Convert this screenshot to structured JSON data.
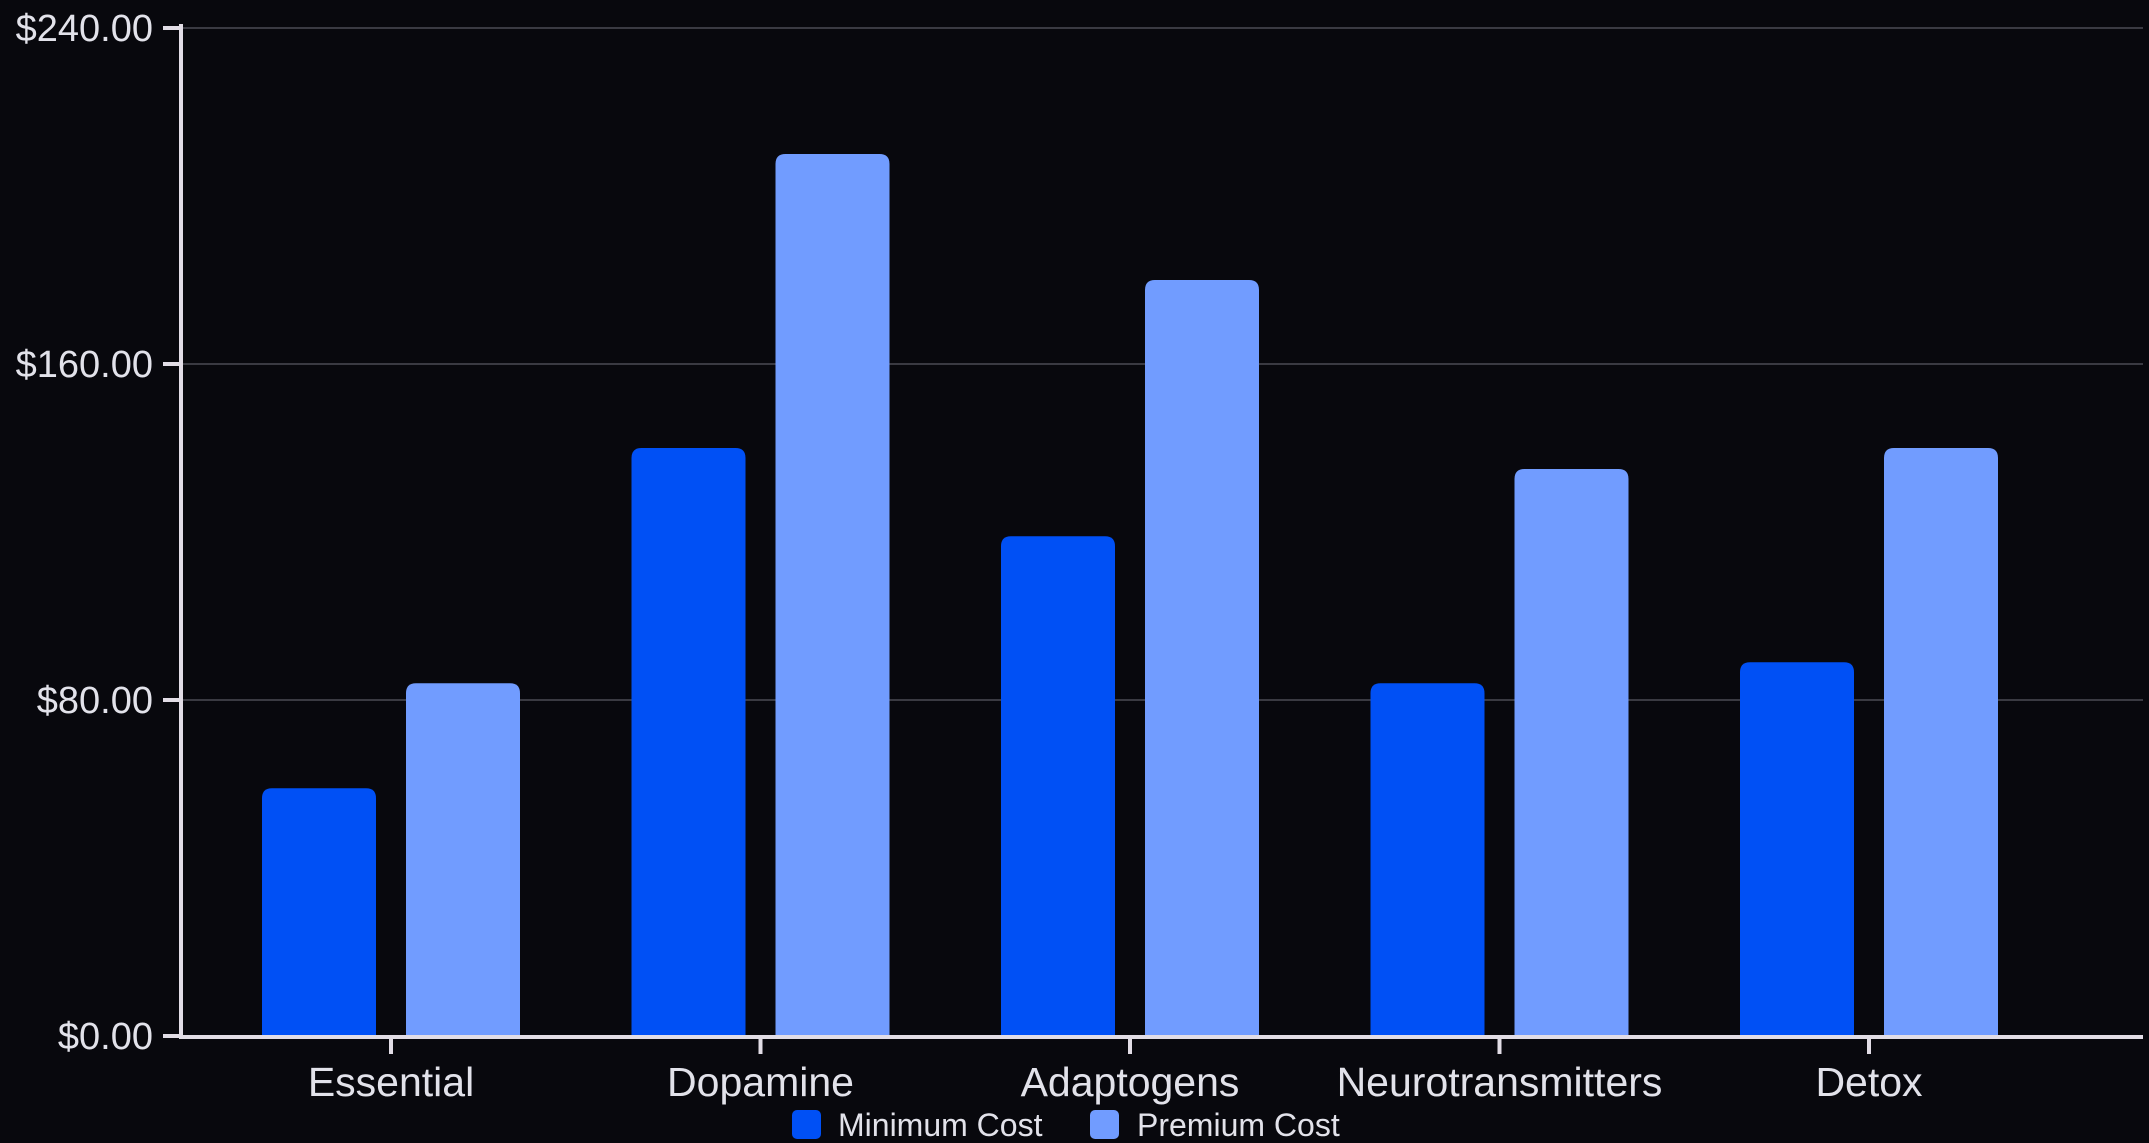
{
  "chart_data": {
    "type": "bar",
    "categories": [
      "Essential",
      "Dopamine",
      "Adaptogens",
      "Neurotransmitters",
      "Detox"
    ],
    "series": [
      {
        "name": "Minimum Cost",
        "values": [
          59,
          140,
          119,
          84,
          89
        ],
        "color": "#0050f5"
      },
      {
        "name": "Premium Cost",
        "values": [
          84,
          210,
          180,
          135,
          140
        ],
        "color": "#719cff"
      }
    ],
    "y_ticks": [
      0,
      80,
      160,
      240
    ],
    "y_tick_labels": [
      "$0.00",
      "$80.00",
      "$160.00",
      "$240.00"
    ],
    "ylim": [
      0,
      240
    ],
    "grid": true,
    "legend_position": "bottom-center",
    "colors": {
      "background": "#08080d",
      "axis": "#e2dde6",
      "grid": "#3a3a42",
      "text": "#e2e2ea"
    }
  }
}
